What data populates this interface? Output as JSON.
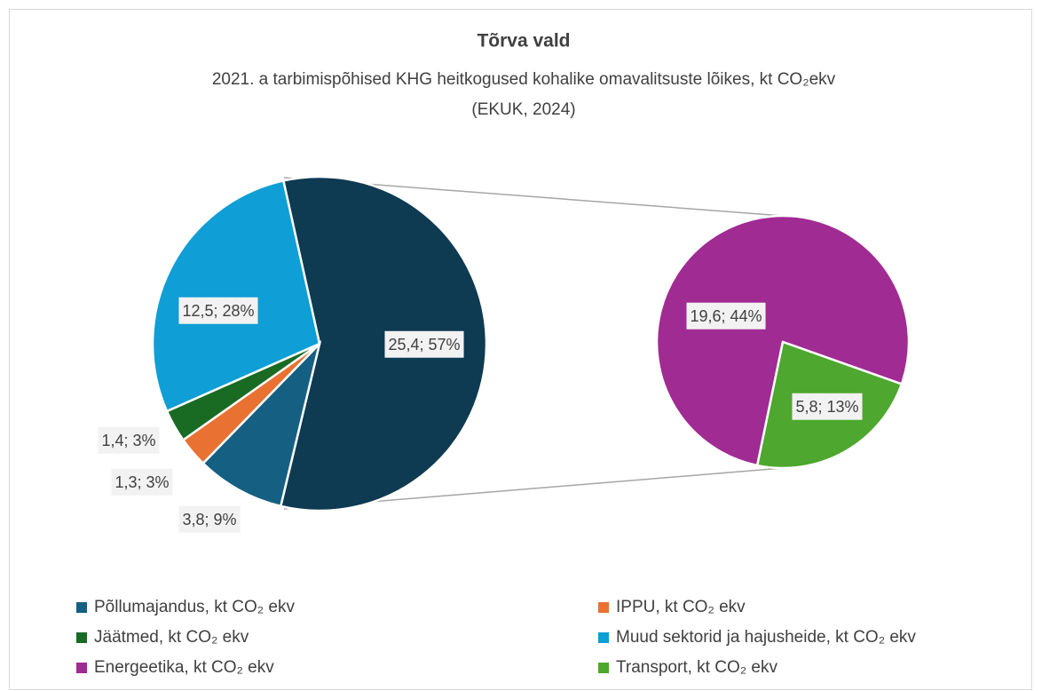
{
  "chart_data": {
    "type": "pie-of-pie",
    "title": "Tõrva vald",
    "subtitle": "2021. a tarbimispõhised KHG heitkogused kohalike omavalitsuste lõikes, kt CO₂ekv",
    "source": "(EKUK, 2024)",
    "main": {
      "categories": [
        null,
        "Põllumajandus, kt CO₂ ekv",
        "IPPU, kt CO₂ ekv",
        "Jäätmed, kt CO₂ ekv",
        "Muud sektorid ja hajusheide, kt CO₂ ekv"
      ],
      "colors": [
        "#0e3a52",
        "#156082",
        "#e97132",
        "#196b24",
        "#0f9ed5"
      ],
      "values": [
        25.4,
        3.8,
        1.3,
        1.4,
        12.5
      ],
      "percents": [
        57,
        9,
        3,
        3,
        28
      ],
      "value_labels": [
        "25,4; 57%",
        "3,8; 9%",
        "1,3; 3%",
        "1,4; 3%",
        "12,5; 28%"
      ]
    },
    "secondary": {
      "categories": [
        "Energeetika, kt CO₂ ekv",
        "Transport, kt CO₂ ekv"
      ],
      "colors": [
        "#a02b93",
        "#4ea72e"
      ],
      "values": [
        19.6,
        5.8
      ],
      "percents": [
        44,
        13
      ],
      "value_labels": [
        "19,6; 44%",
        "5,8; 13%"
      ]
    }
  }
}
